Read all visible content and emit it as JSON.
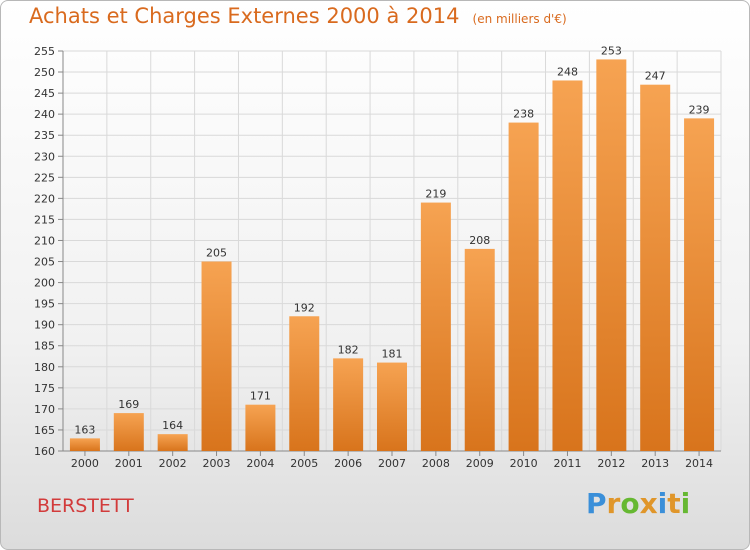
{
  "header": {
    "title": "Achats et Charges Externes 2000 à 2014",
    "subtitle": "(en milliers d'€)"
  },
  "footer": {
    "commune": "BERSTETT",
    "logo": "Proxiti",
    "logo_colors": [
      "#3a8fd9",
      "#e0962a",
      "#66b832",
      "#e0962a",
      "#3a8fd9",
      "#e0962a",
      "#66b832"
    ]
  },
  "colors": {
    "bar_light": "#f6a352",
    "bar_dark": "#d8741c",
    "title": "#d96a1e",
    "grid": "#d9d9d9"
  },
  "chart_data": {
    "type": "bar",
    "categories": [
      "2000",
      "2001",
      "2002",
      "2003",
      "2004",
      "2005",
      "2006",
      "2007",
      "2008",
      "2009",
      "2010",
      "2011",
      "2012",
      "2013",
      "2014"
    ],
    "values": [
      163,
      169,
      164,
      205,
      171,
      192,
      182,
      181,
      219,
      208,
      238,
      248,
      253,
      247,
      239
    ],
    "ylim": [
      160,
      255
    ],
    "yticks": [
      160,
      165,
      170,
      175,
      180,
      185,
      190,
      195,
      200,
      205,
      210,
      215,
      220,
      225,
      230,
      235,
      240,
      245,
      250,
      255
    ],
    "grid": true,
    "data_labels": true
  }
}
